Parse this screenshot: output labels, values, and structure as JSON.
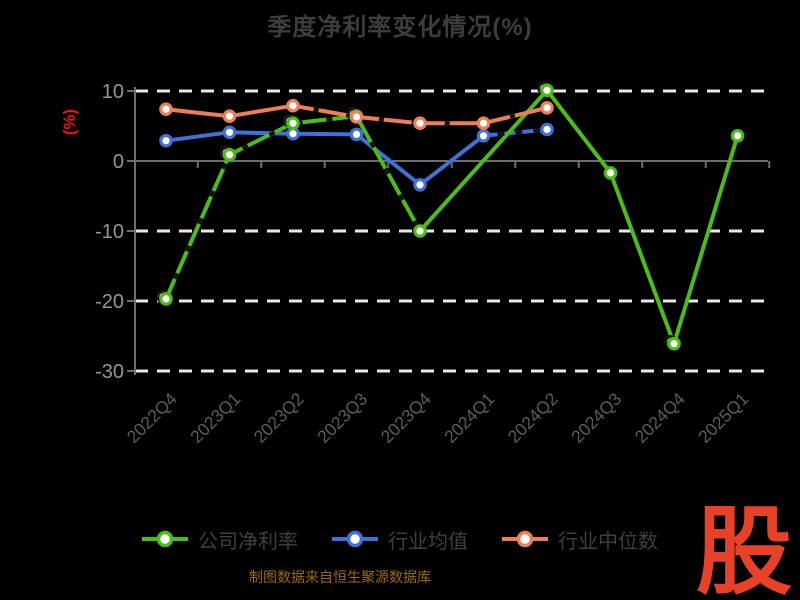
{
  "title": "季度净利率变化情况(%)",
  "y_axis_unit_label": "(%)",
  "footer_note": "制图数据来自恒生聚源数据库",
  "watermark_logo": "股",
  "colors": {
    "background": "#000000",
    "title": "#3d3d3d",
    "axis": "#6e6e6e",
    "grid": "#e9e9e9",
    "y_tick_label": "#969696",
    "x_tick_label": "#5c5c5c",
    "y_unit_label": "#ee1111",
    "legend_text": "#3f3f3f",
    "footer_text": "#9c6a02",
    "logo_red": "#e94127",
    "series_company": "#4bbd18",
    "series_industry_avg": "#4170d8",
    "series_industry_median": "#ec7f55"
  },
  "chart_data": {
    "type": "line",
    "title": "季度净利率变化情况(%)",
    "xlabel": "",
    "ylabel": "(%)",
    "ylim": [
      -30,
      10
    ],
    "yticks": [
      10,
      0,
      -10,
      -20,
      -30
    ],
    "grid": "horizontal-dashed-white",
    "legend_position": "bottom",
    "categories": [
      "2022Q4",
      "2023Q1",
      "2023Q2",
      "2023Q3",
      "2023Q4",
      "2024Q1",
      "2024Q2",
      "2024Q3",
      "2024Q4",
      "2025Q1"
    ],
    "series": [
      {
        "name": "公司净利率",
        "color": "#4bbd18",
        "values": [
          -19.7,
          0.9,
          5.4,
          6.4,
          -10.0,
          null,
          10.1,
          -1.7,
          -26.1,
          3.6
        ]
      },
      {
        "name": "行业均值",
        "color": "#4170d8",
        "values": [
          2.9,
          4.1,
          3.9,
          3.8,
          -3.4,
          3.6,
          4.5,
          null,
          null,
          null
        ]
      },
      {
        "name": "行业中位数",
        "color": "#ec7f55",
        "values": [
          7.4,
          6.4,
          7.9,
          6.3,
          5.4,
          5.4,
          7.6,
          null,
          null,
          null
        ]
      }
    ]
  }
}
